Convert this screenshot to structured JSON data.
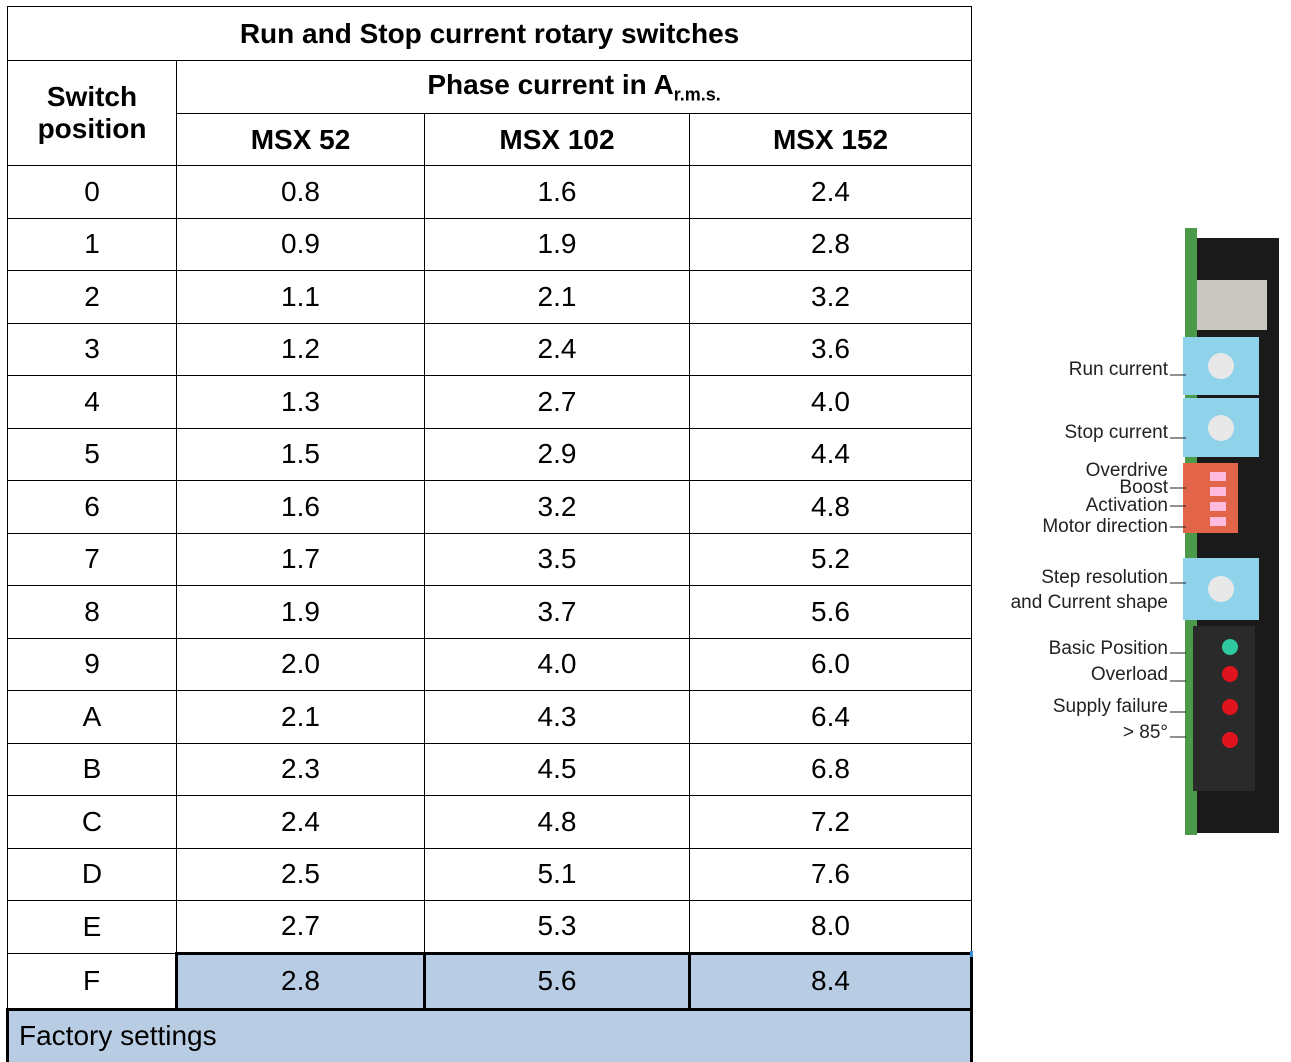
{
  "table": {
    "title": "Run and Stop current rotary switches",
    "header": {
      "switch": "Switch position",
      "phase": "Phase current in A",
      "phase_sub": "r.m.s.",
      "models": [
        "MSX 52",
        "MSX 102",
        "MSX 152"
      ]
    },
    "rows": [
      [
        "0",
        "0.8",
        "1.6",
        "2.4"
      ],
      [
        "1",
        "0.9",
        "1.9",
        "2.8"
      ],
      [
        "2",
        "1.1",
        "2.1",
        "3.2"
      ],
      [
        "3",
        "1.2",
        "2.4",
        "3.6"
      ],
      [
        "4",
        "1.3",
        "2.7",
        "4.0"
      ],
      [
        "5",
        "1.5",
        "2.9",
        "4.4"
      ],
      [
        "6",
        "1.6",
        "3.2",
        "4.8"
      ],
      [
        "7",
        "1.7",
        "3.5",
        "5.2"
      ],
      [
        "8",
        "1.9",
        "3.7",
        "5.6"
      ],
      [
        "9",
        "2.0",
        "4.0",
        "6.0"
      ],
      [
        "A",
        "2.1",
        "4.3",
        "6.4"
      ],
      [
        "B",
        "2.3",
        "4.5",
        "6.8"
      ],
      [
        "C",
        "2.4",
        "4.8",
        "7.2"
      ],
      [
        "D",
        "2.5",
        "5.1",
        "7.6"
      ],
      [
        "E",
        "2.7",
        "5.3",
        "8.0"
      ],
      [
        "F",
        "2.8",
        "5.6",
        "8.4"
      ]
    ],
    "footer": "Factory settings"
  },
  "device": {
    "labels": [
      "Run current",
      "Stop current",
      "Overdrive",
      "Boost",
      "Activation",
      "Motor direction",
      "Step resolution",
      "and Current shape",
      "Basic Position",
      "Overload",
      "Supply failure",
      "> 85°"
    ]
  }
}
